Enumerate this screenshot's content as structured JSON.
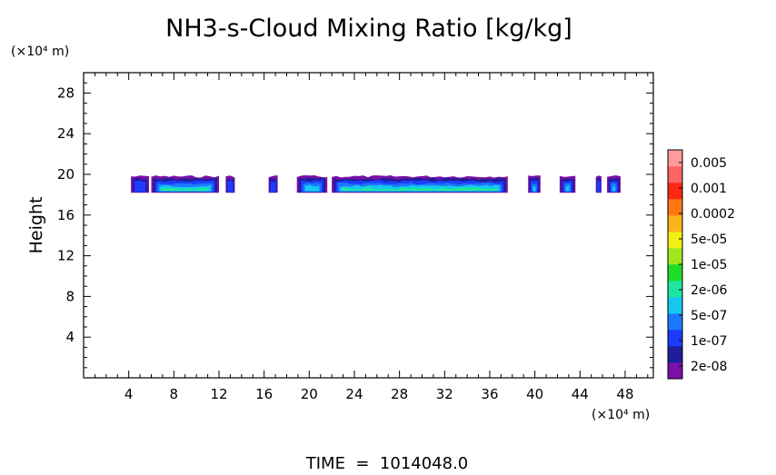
{
  "chart_data": {
    "type": "heatmap",
    "title": "NH3-s-Cloud Mixing Ratio [kg/kg]",
    "xlabel": "",
    "ylabel": "Height",
    "x_unit": "(×10⁴ m)",
    "y_unit": "(×10⁴ m)",
    "x_ticks": [
      "4",
      "8",
      "12",
      "16",
      "20",
      "24",
      "28",
      "32",
      "36",
      "40",
      "44",
      "48"
    ],
    "y_ticks": [
      "4",
      "8",
      "12",
      "16",
      "20",
      "24",
      "28"
    ],
    "xlim": [
      0,
      50.5
    ],
    "ylim": [
      0,
      30
    ],
    "grid": false,
    "legend": "right colorbar",
    "footer": "TIME  =  1014048.0",
    "colorbar": {
      "labels": [
        "0.005",
        "0.001",
        "0.0002",
        "5e-05",
        "1e-05",
        "2e-06",
        "5e-07",
        "1e-07",
        "2e-08"
      ],
      "colors": [
        "#7a10a8",
        "#1e1e9a",
        "#1e3cff",
        "#1c78ff",
        "#14c8f0",
        "#1ee6a0",
        "#1edc28",
        "#a0e61e",
        "#f0f014",
        "#fab41e",
        "#ff7814",
        "#ff2814",
        "#ff6464",
        "#ff9b9b"
      ]
    },
    "cloud_layer": {
      "base_height": 18.2,
      "top_height": 19.8,
      "peak_level": "1e-05",
      "segments": [
        {
          "x": [
            4.2,
            5.8
          ],
          "level": "1e-07"
        },
        {
          "x": [
            6.0,
            12.0
          ],
          "level": "1e-05"
        },
        {
          "x": [
            12.6,
            13.4
          ],
          "level": "1e-07"
        },
        {
          "x": [
            16.4,
            17.2
          ],
          "level": "1e-07"
        },
        {
          "x": [
            18.9,
            21.6
          ],
          "level": "2e-06"
        },
        {
          "x": [
            22.0,
            37.6
          ],
          "level": "1e-05"
        },
        {
          "x": [
            39.4,
            40.5
          ],
          "level": "2e-06"
        },
        {
          "x": [
            42.2,
            43.6
          ],
          "level": "2e-06"
        },
        {
          "x": [
            45.4,
            45.9
          ],
          "level": "1e-07"
        },
        {
          "x": [
            46.4,
            47.6
          ],
          "level": "2e-06"
        }
      ]
    }
  }
}
